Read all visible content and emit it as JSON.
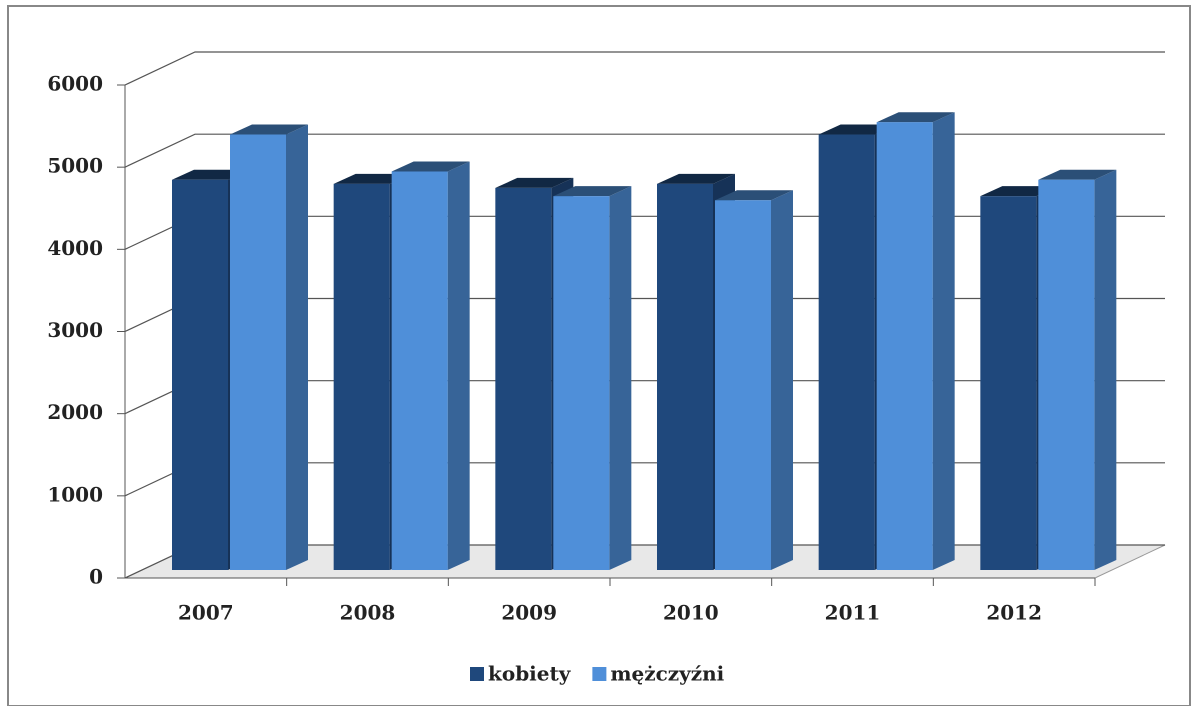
{
  "chart_data": {
    "type": "bar3d",
    "categories": [
      "2007",
      "2008",
      "2009",
      "2010",
      "2011",
      "2012"
    ],
    "series": [
      {
        "name": "kobiety",
        "color": "#1f487c",
        "values": [
          4750,
          4700,
          4650,
          4700,
          5300,
          4550
        ]
      },
      {
        "name": "mężczyźni",
        "color": "#4f8fd9",
        "values": [
          5300,
          4850,
          4550,
          4500,
          5450,
          4750
        ]
      }
    ],
    "ylim": [
      0,
      6000
    ],
    "yticks": [
      0,
      1000,
      2000,
      3000,
      4000,
      5000,
      6000
    ],
    "grid": true,
    "legend": "bottom"
  }
}
